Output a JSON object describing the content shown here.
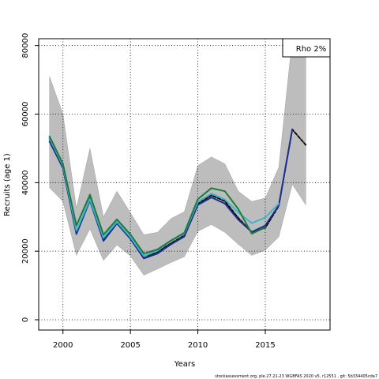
{
  "chart_data": {
    "type": "line",
    "title": "",
    "xlabel": "Years",
    "ylabel": "Recruits (age 1)",
    "xlim": [
      1998.2,
      2019.8
    ],
    "ylim": [
      -3000,
      82000
    ],
    "x_ticks": [
      2000,
      2005,
      2010,
      2015
    ],
    "y_ticks": [
      0,
      20000,
      40000,
      60000,
      80000
    ],
    "grid": "dotted",
    "legend": {
      "position": "top-right",
      "label": "Rho 2%"
    },
    "footer": "stockassessment.org, ple.27.21-23 WGBFAS 2020 v5, r12551 , git: 5b334405cda7",
    "band": {
      "x": [
        1999,
        2000,
        2001,
        2002,
        2003,
        2004,
        2005,
        2006,
        2007,
        2008,
        2009,
        2010,
        2011,
        2012,
        2013,
        2014,
        2015,
        2016,
        2017,
        2018
      ],
      "lower": [
        38500,
        34500,
        18800,
        26500,
        17300,
        21800,
        18600,
        13000,
        14800,
        16700,
        18400,
        25800,
        27800,
        25500,
        22000,
        18800,
        20300,
        24200,
        39500,
        33500
      ],
      "upper": [
        71000,
        60000,
        32500,
        50000,
        30000,
        37500,
        31200,
        24800,
        25500,
        29500,
        31500,
        45000,
        47500,
        45500,
        37500,
        34500,
        35500,
        44500,
        82000,
        82000
      ]
    },
    "series": [
      {
        "color": "#000000",
        "dashed": true,
        "x": [
          1999,
          2000,
          2001,
          2002,
          2003,
          2004,
          2005,
          2006,
          2007,
          2008,
          2009,
          2010,
          2011,
          2012,
          2013,
          2014,
          2015,
          2016,
          2017,
          2018
        ],
        "y": [
          52800,
          44800,
          25800,
          35400,
          23500,
          28500,
          23800,
          18000,
          19800,
          22300,
          24600,
          33800,
          36300,
          34600,
          29700,
          25500,
          26800,
          33200,
          55500,
          51000
        ]
      },
      {
        "color": "#1f2f8f",
        "dashed": false,
        "x": [
          1999,
          2000,
          2001,
          2002,
          2003,
          2004,
          2005,
          2006,
          2007,
          2008,
          2009,
          2010,
          2011,
          2012,
          2013,
          2014,
          2015,
          2016,
          2017
        ],
        "y": [
          52000,
          44300,
          25000,
          34800,
          23000,
          28100,
          23600,
          17900,
          19300,
          22000,
          24300,
          33500,
          35700,
          33900,
          29200,
          25600,
          27500,
          33400,
          55600
        ]
      },
      {
        "color": "#3bb8c8",
        "dashed": false,
        "x": [
          1999,
          2000,
          2001,
          2002,
          2003,
          2004,
          2005,
          2006,
          2007,
          2008,
          2009,
          2010,
          2011,
          2012,
          2013,
          2014,
          2015,
          2016
        ],
        "y": [
          53000,
          45000,
          26000,
          35200,
          23900,
          28600,
          24100,
          18600,
          20100,
          23000,
          25200,
          34400,
          36800,
          35100,
          31300,
          28200,
          29800,
          33900
        ]
      },
      {
        "color": "#1f7a3a",
        "dashed": false,
        "x": [
          1999,
          2000,
          2001,
          2002,
          2003,
          2004,
          2005,
          2006,
          2007,
          2008,
          2009,
          2010,
          2011,
          2012,
          2013,
          2014,
          2015
        ],
        "y": [
          53500,
          45500,
          27500,
          36500,
          24800,
          29300,
          24900,
          19300,
          20500,
          23100,
          25400,
          35200,
          38400,
          37500,
          32300,
          25100,
          27000
        ]
      }
    ]
  }
}
